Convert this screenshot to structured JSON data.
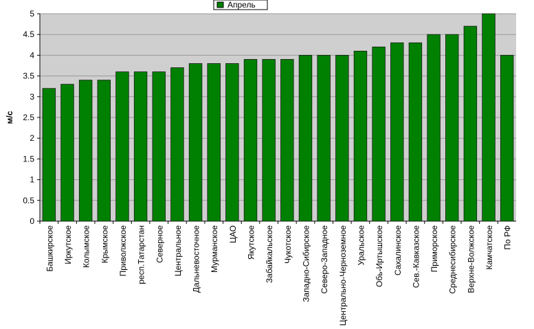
{
  "chart_data": {
    "type": "bar",
    "y_label": "м/с",
    "categories": [
      "Башкирское",
      "Иркутское",
      "Колымское",
      "Крымское",
      "Приволжское",
      "респ.Татарстан",
      "Северное",
      "Центральное",
      "Дальневосточное",
      "Мурманское",
      "ЦАО",
      "Якутское",
      "Забайкальское",
      "Чукотское",
      "Западно-Сибирское",
      "Северо-Западное",
      "Центрально-Черноземное",
      "Уральское",
      "Обь-Иртышское",
      "Сахалинское",
      "Сев.-Кавказское",
      "Приморское",
      "Среднесибирское",
      "Верхне-Волжское",
      "Камчатское",
      "По РФ"
    ],
    "series": [
      {
        "name": "Апрель",
        "color": "#008000",
        "values": [
          3.2,
          3.3,
          3.4,
          3.4,
          3.6,
          3.6,
          3.6,
          3.7,
          3.8,
          3.8,
          3.8,
          3.9,
          3.9,
          3.9,
          4.0,
          4.0,
          4.0,
          4.1,
          4.2,
          4.3,
          4.3,
          4.5,
          4.5,
          4.7,
          5.0,
          4.0
        ]
      }
    ],
    "ylim": [
      0,
      5
    ],
    "yticks": [
      0,
      0.5,
      1,
      1.5,
      2,
      2.5,
      3,
      3.5,
      4,
      4.5,
      5
    ],
    "grid": true,
    "legend": "top"
  }
}
